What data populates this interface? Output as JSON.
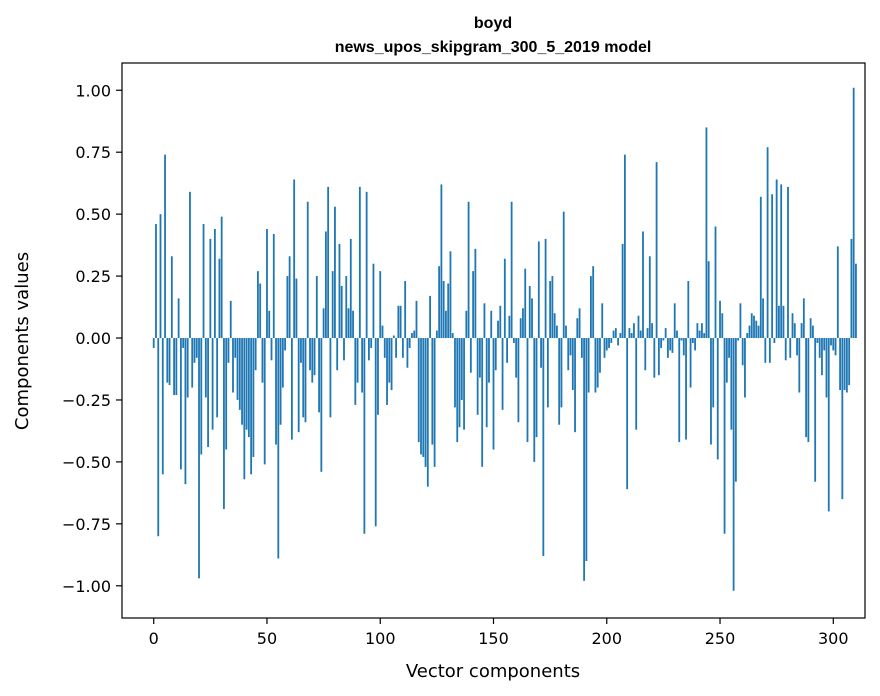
{
  "chart_data": {
    "type": "bar",
    "title": "boyd",
    "subtitle": "news_upos_skipgram_300_5_2019 model",
    "xlabel": "Vector components",
    "ylabel": "Components values",
    "xlim": [
      -14,
      314
    ],
    "ylim": [
      -1.13,
      1.11
    ],
    "xticks": [
      0,
      50,
      100,
      150,
      200,
      250,
      300
    ],
    "yticks": [
      -1.0,
      -0.75,
      -0.5,
      -0.25,
      0.0,
      0.25,
      0.5,
      0.75,
      1.0
    ],
    "ytick_labels": [
      "−1.00",
      "−0.75",
      "−0.50",
      "−0.25",
      "0.00",
      "0.25",
      "0.50",
      "0.75",
      "1.00"
    ],
    "bar_color": "#1f77b4",
    "values": [
      -0.04,
      0.46,
      -0.8,
      0.5,
      -0.55,
      0.74,
      -0.18,
      -0.19,
      0.33,
      -0.23,
      -0.23,
      0.16,
      -0.53,
      -0.04,
      -0.59,
      -0.24,
      0.59,
      -0.2,
      -0.1,
      -0.08,
      -0.97,
      -0.47,
      0.46,
      -0.24,
      -0.44,
      0.4,
      -0.37,
      0.44,
      -0.32,
      0.32,
      0.49,
      -0.69,
      -0.45,
      -0.1,
      0.15,
      -0.22,
      -0.08,
      -0.25,
      -0.29,
      -0.35,
      -0.57,
      -0.37,
      -0.4,
      -0.55,
      -0.48,
      -0.13,
      0.27,
      0.22,
      -0.18,
      -0.51,
      0.44,
      0.11,
      -0.09,
      0.42,
      -0.43,
      -0.89,
      -0.35,
      -0.2,
      -0.05,
      0.25,
      0.33,
      -0.41,
      0.64,
      0.24,
      -0.38,
      -0.1,
      -0.32,
      -0.34,
      0.55,
      -0.13,
      -0.18,
      -0.15,
      0.25,
      -0.3,
      -0.54,
      0.12,
      0.43,
      0.61,
      -0.32,
      0.27,
      0.53,
      -0.13,
      0.38,
      0.21,
      -0.09,
      0.25,
      0.12,
      0.4,
      0.11,
      -0.27,
      -0.18,
      0.61,
      -0.22,
      -0.79,
      0.59,
      -0.09,
      -0.04,
      0.3,
      -0.76,
      -0.31,
      0.27,
      0.05,
      -0.08,
      -0.27,
      -0.18,
      -0.21,
      0.01,
      -0.08,
      0.13,
      0.13,
      -0.08,
      0.23,
      -0.12,
      -0.04,
      0.02,
      0.03,
      0.15,
      -0.42,
      -0.47,
      -0.48,
      -0.52,
      -0.6,
      0.17,
      -0.43,
      -0.52,
      0.03,
      0.29,
      0.62,
      0.23,
      0.11,
      0.22,
      0.35,
      0.02,
      -0.28,
      -0.42,
      -0.36,
      -0.25,
      -0.37,
      0.11,
      0.55,
      -0.14,
      0.27,
      0.36,
      -0.31,
      -0.16,
      -0.52,
      0.14,
      -0.36,
      -0.18,
      0.11,
      -0.45,
      -0.13,
      0.07,
      0.13,
      -0.29,
      0.32,
      -0.1,
      0.09,
      0.55,
      -0.02,
      -0.16,
      -0.34,
      0.08,
      0.12,
      0.28,
      -0.42,
      0.21,
      0.16,
      -0.5,
      -0.4,
      0.39,
      -0.12,
      -0.88,
      0.4,
      -0.28,
      0.23,
      0.25,
      0.1,
      0.05,
      -0.35,
      -0.28,
      0.51,
      0.05,
      -0.13,
      -0.07,
      -0.21,
      -0.38,
      0.08,
      0.12,
      -0.08,
      -0.98,
      -0.9,
      -0.22,
      0.25,
      0.29,
      -0.22,
      -0.2,
      -0.14,
      0.14,
      -0.08,
      -0.05,
      -0.04,
      -0.02,
      0.03,
      0.04,
      -0.03,
      0.02,
      0.38,
      0.74,
      -0.61,
      0.04,
      0.02,
      0.06,
      -0.37,
      0.09,
      0.03,
      0.43,
      -0.13,
      0.04,
      0.33,
      0.06,
      -0.16,
      0.71,
      -0.15,
      -0.04,
      -0.01,
      0.04,
      -0.08,
      -0.05,
      -0.06,
      0.14,
      0.03,
      -0.42,
      -0.01,
      -0.07,
      -0.41,
      0.23,
      -0.2,
      -0.02,
      -0.05,
      0.06,
      0.03,
      0.06,
      0.02,
      0.85,
      0.31,
      -0.43,
      -0.28,
      0.45,
      -0.49,
      0.15,
      0.1,
      -0.79,
      -0.18,
      -0.08,
      -0.37,
      -1.02,
      -0.58,
      -0.01,
      0.14,
      -0.11,
      -0.24,
      0.02,
      0.05,
      0.1,
      0.09,
      0.07,
      0.05,
      0.57,
      0.16,
      -0.1,
      0.77,
      -0.1,
      0.58,
      -0.02,
      0.64,
      0.13,
      0.62,
      0.13,
      -0.09,
      0.61,
      -0.08,
      0.1,
      0.06,
      -0.07,
      -0.22,
      0.06,
      0.16,
      -0.4,
      -0.42,
      0.08,
      0.05,
      -0.58,
      -0.02,
      -0.08,
      -0.15,
      -0.05,
      -0.24,
      -0.7,
      -0.03,
      -0.05,
      -0.07,
      0.37,
      -0.21,
      -0.65,
      -0.21,
      -0.22,
      -0.19,
      0.4,
      1.01,
      0.3
    ]
  }
}
